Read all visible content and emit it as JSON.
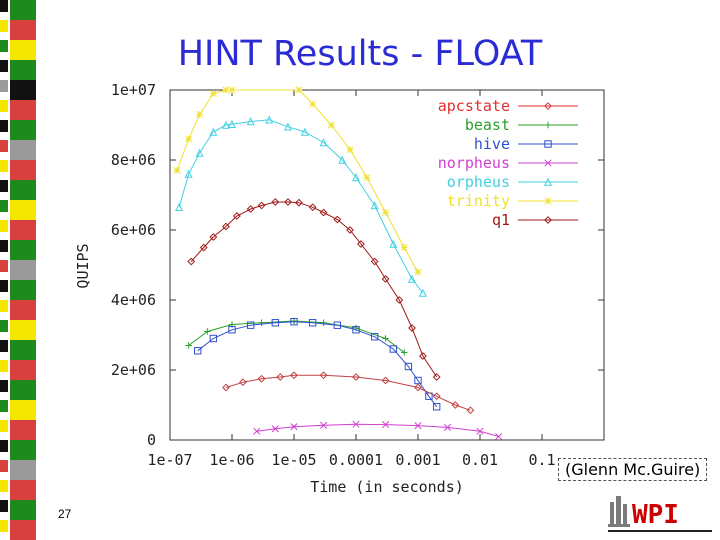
{
  "slide": {
    "title": "HINT Results - FLOAT",
    "page_number": "27",
    "credit": "(Glenn Mc.Guire)",
    "logo_text": "WPI",
    "logo_colors": [
      "#7a7a7a",
      "#cc0000",
      "#222222"
    ],
    "strip_colors": [
      "#1e8a1e",
      "#d84040",
      "#111111",
      "#f5e600",
      "#9a9a9a",
      "#ffffff"
    ]
  },
  "chart_data": {
    "type": "line",
    "title": "",
    "xlabel": "Time (in seconds)",
    "ylabel": "QUIPS",
    "x_scale": "log",
    "xlim": [
      1e-07,
      1
    ],
    "ylim": [
      0,
      10000000
    ],
    "grid": false,
    "legend_placement": "top-right",
    "x_ticks": [
      {
        "value": 1e-07,
        "label": "1e-07"
      },
      {
        "value": 1e-06,
        "label": "1e-06"
      },
      {
        "value": 1e-05,
        "label": "1e-05"
      },
      {
        "value": 0.0001,
        "label": "0.0001"
      },
      {
        "value": 0.001,
        "label": "0.001"
      },
      {
        "value": 0.01,
        "label": "0.01"
      },
      {
        "value": 0.1,
        "label": "0.1"
      }
    ],
    "y_ticks": [
      {
        "value": 0,
        "label": "0"
      },
      {
        "value": 2000000,
        "label": "2e+06"
      },
      {
        "value": 4000000,
        "label": "4e+06"
      },
      {
        "value": 6000000,
        "label": "6e+06"
      },
      {
        "value": 8000000,
        "label": "8e+06"
      },
      {
        "value": 10000000,
        "label": "1e+07"
      }
    ],
    "series": [
      {
        "name": "apcstate",
        "color": "#e03030",
        "marker": "diamond",
        "x": [],
        "y": []
      },
      {
        "name": "beast",
        "color": "#2aa02a",
        "marker": "plus",
        "x": [
          2e-07,
          4e-07,
          1e-06,
          3e-06,
          1e-05,
          3e-05,
          0.0001,
          0.0003,
          0.0006
        ],
        "y": [
          2700000,
          3100000,
          3300000,
          3350000,
          3400000,
          3350000,
          3200000,
          2900000,
          2500000
        ]
      },
      {
        "name": "hive",
        "color": "#3050d0",
        "marker": "square",
        "x": [
          2.8e-07,
          5e-07,
          1e-06,
          2e-06,
          5e-06,
          1e-05,
          2e-05,
          5e-05,
          0.0001,
          0.0002,
          0.0004,
          0.0007,
          0.001,
          0.0015,
          0.002
        ],
        "y": [
          2550000,
          2900000,
          3150000,
          3280000,
          3350000,
          3380000,
          3350000,
          3280000,
          3150000,
          2950000,
          2600000,
          2100000,
          1700000,
          1250000,
          950000
        ]
      },
      {
        "name": "norpheus",
        "color": "#d040d0",
        "marker": "cross",
        "x": [
          2.5e-06,
          5e-06,
          1e-05,
          3e-05,
          0.0001,
          0.0003,
          0.001,
          0.003,
          0.01,
          0.02
        ],
        "y": [
          250000,
          320000,
          380000,
          420000,
          450000,
          440000,
          410000,
          360000,
          250000,
          100000
        ]
      },
      {
        "name": "orpheus",
        "color": "#40d0e0",
        "marker": "triangle",
        "x": [
          1.4e-07,
          2e-07,
          3e-07,
          5e-07,
          8e-07,
          1e-06,
          2e-06,
          4e-06,
          8e-06,
          1.5e-05,
          3e-05,
          6e-05,
          0.0001,
          0.0002,
          0.0004,
          0.0008,
          0.0012
        ],
        "y": [
          6650000,
          7600000,
          8200000,
          8800000,
          9000000,
          9020000,
          9100000,
          9150000,
          8950000,
          8800000,
          8500000,
          8000000,
          7500000,
          6700000,
          5600000,
          4600000,
          4200000
        ]
      },
      {
        "name": "trinity",
        "color": "#f0e030",
        "marker": "star",
        "x": [
          1.3e-07,
          2e-07,
          3e-07,
          5e-07,
          8e-07,
          1e-06,
          1.2e-05,
          2e-05,
          4e-05,
          8e-05,
          0.00015,
          0.0003,
          0.0006,
          0.001
        ],
        "y": [
          7700000,
          8600000,
          9300000,
          9900000,
          10000000,
          10000000,
          10000000,
          9600000,
          9000000,
          8300000,
          7500000,
          6500000,
          5500000,
          4800000
        ]
      },
      {
        "name": "q1",
        "color": "#a01818",
        "marker": "diamond",
        "x": [
          2.2e-07,
          3.5e-07,
          5e-07,
          8e-07,
          1.2e-06,
          2e-06,
          3e-06,
          5e-06,
          8e-06,
          1.2e-05,
          2e-05,
          3e-05,
          5e-05,
          8e-05,
          0.00012,
          0.0002,
          0.0003,
          0.0005,
          0.0008,
          0.0012,
          0.002
        ],
        "y": [
          5100000,
          5500000,
          5800000,
          6100000,
          6400000,
          6600000,
          6700000,
          6800000,
          6800000,
          6780000,
          6650000,
          6500000,
          6300000,
          6000000,
          5600000,
          5100000,
          4600000,
          4000000,
          3200000,
          2400000,
          1800000
        ]
      }
    ],
    "bottom_series": {
      "name": "",
      "color": "#c04040",
      "marker": "diamond",
      "x": [
        8e-07,
        1.5e-06,
        3e-06,
        6e-06,
        1e-05,
        3e-05,
        0.0001,
        0.0003,
        0.001,
        0.002,
        0.004,
        0.007
      ],
      "y": [
        1500000,
        1650000,
        1750000,
        1800000,
        1850000,
        1850000,
        1800000,
        1700000,
        1500000,
        1250000,
        1000000,
        850000
      ]
    }
  }
}
